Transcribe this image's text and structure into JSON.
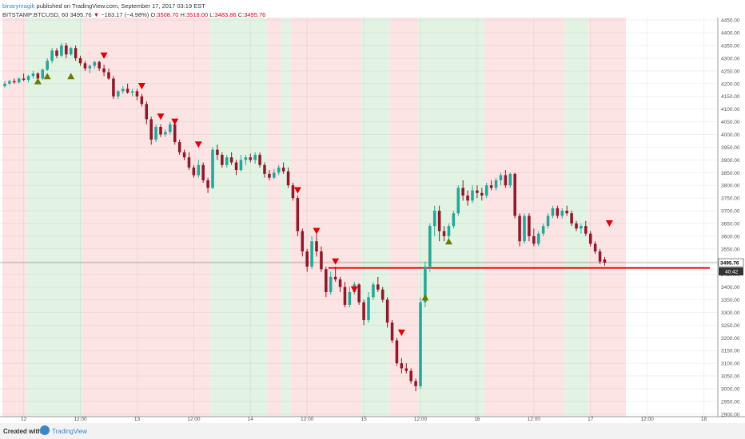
{
  "header": {
    "author": "binarymagik",
    "published": "published on TradingView.com, September 17, 2017 03:19 EST",
    "symbol_line": "BITSTAMP:BTCUSD, 60",
    "last": "3495.76",
    "change": "−183.17 (−4.98%)",
    "o_label": "O:",
    "o": "3508.70",
    "h_label": "H:",
    "h": "3518.00",
    "l_label": "L:",
    "l": "3483.86",
    "c_label": "C:",
    "c": "3495.76"
  },
  "footer": {
    "created": "Created with",
    "brand": "TradingView"
  },
  "colors": {
    "up": "#26a69a",
    "down": "#8b1a2b",
    "green_zone": "#e3f3e3",
    "red_zone": "#fde4e4",
    "level_line": "#e00000",
    "marker_up": "#6b7a00",
    "marker_down": "#e00000"
  },
  "chart_data": {
    "type": "candlestick",
    "ylim": [
      2890,
      4460
    ],
    "yticks": [
      "4450.00",
      "4400.00",
      "4350.00",
      "4300.00",
      "4250.00",
      "4200.00",
      "4150.00",
      "4100.00",
      "4050.00",
      "4000.00",
      "3950.00",
      "3900.00",
      "3850.00",
      "3800.00",
      "3750.00",
      "3700.00",
      "3650.00",
      "3600.00",
      "3550.00",
      "3500.00",
      "3450.00",
      "3400.00",
      "3350.00",
      "3300.00",
      "3250.00",
      "3200.00",
      "3150.00",
      "3100.00",
      "3050.00",
      "3000.00",
      "2950.00",
      "2900.00"
    ],
    "xlim": [
      0,
      132
    ],
    "xticks": [
      {
        "t": 4,
        "label": "12"
      },
      {
        "t": 16,
        "label": "12:00"
      },
      {
        "t": 28,
        "label": "13"
      },
      {
        "t": 40,
        "label": "12:00"
      },
      {
        "t": 52,
        "label": "14"
      },
      {
        "t": 64,
        "label": "12:00"
      },
      {
        "t": 76,
        "label": "15"
      },
      {
        "t": 88,
        "label": "12:00"
      },
      {
        "t": 100,
        "label": "16"
      },
      {
        "t": 112,
        "label": "12:00"
      },
      {
        "t": 124,
        "label": "17"
      },
      {
        "t": 136,
        "label": "12:00"
      },
      {
        "t": 148,
        "label": "18"
      }
    ],
    "price_label": "3495.76",
    "countdown_label": "40:42",
    "horizontal_level": 3475,
    "zones": [
      {
        "from": 0,
        "to": 5,
        "color": "red"
      },
      {
        "from": 5,
        "to": 17,
        "color": "green"
      },
      {
        "from": 17,
        "to": 44,
        "color": "red"
      },
      {
        "from": 44,
        "to": 56,
        "color": "green"
      },
      {
        "from": 56,
        "to": 59,
        "color": "red"
      },
      {
        "from": 59,
        "to": 61,
        "color": "green"
      },
      {
        "from": 61,
        "to": 76,
        "color": "red"
      },
      {
        "from": 76,
        "to": 82,
        "color": "green"
      },
      {
        "from": 82,
        "to": 88,
        "color": "red"
      },
      {
        "from": 88,
        "to": 102,
        "color": "green"
      },
      {
        "from": 102,
        "to": 119,
        "color": "red"
      },
      {
        "from": 119,
        "to": 124,
        "color": "green"
      },
      {
        "from": 124,
        "to": 132,
        "color": "red"
      }
    ],
    "candles": [
      [
        4190,
        4210,
        4185,
        4200
      ],
      [
        4200,
        4215,
        4195,
        4210
      ],
      [
        4210,
        4220,
        4200,
        4205
      ],
      [
        4205,
        4225,
        4200,
        4220
      ],
      [
        4220,
        4240,
        4210,
        4215
      ],
      [
        4215,
        4235,
        4205,
        4230
      ],
      [
        4230,
        4250,
        4220,
        4240
      ],
      [
        4240,
        4245,
        4210,
        4220
      ],
      [
        4220,
        4260,
        4215,
        4255
      ],
      [
        4255,
        4300,
        4250,
        4290
      ],
      [
        4290,
        4340,
        4280,
        4330
      ],
      [
        4330,
        4340,
        4300,
        4310
      ],
      [
        4310,
        4360,
        4305,
        4350
      ],
      [
        4350,
        4360,
        4300,
        4315
      ],
      [
        4315,
        4345,
        4310,
        4340
      ],
      [
        4340,
        4350,
        4290,
        4300
      ],
      [
        4300,
        4310,
        4270,
        4280
      ],
      [
        4280,
        4290,
        4250,
        4260
      ],
      [
        4260,
        4275,
        4240,
        4270
      ],
      [
        4270,
        4290,
        4260,
        4285
      ],
      [
        4285,
        4290,
        4250,
        4260
      ],
      [
        4260,
        4275,
        4230,
        4245
      ],
      [
        4245,
        4260,
        4215,
        4220
      ],
      [
        4220,
        4230,
        4140,
        4150
      ],
      [
        4150,
        4175,
        4140,
        4170
      ],
      [
        4170,
        4190,
        4160,
        4180
      ],
      [
        4180,
        4200,
        4160,
        4165
      ],
      [
        4165,
        4180,
        4150,
        4170
      ],
      [
        4170,
        4180,
        4135,
        4150
      ],
      [
        4150,
        4160,
        4110,
        4120
      ],
      [
        4120,
        4130,
        4040,
        4060
      ],
      [
        4060,
        4070,
        3960,
        3980
      ],
      [
        3980,
        4040,
        3970,
        4030
      ],
      [
        4030,
        4040,
        3990,
        4000
      ],
      [
        4000,
        4020,
        3990,
        4010
      ],
      [
        4010,
        4050,
        4000,
        4040
      ],
      [
        4040,
        4045,
        3960,
        3970
      ],
      [
        3970,
        3980,
        3920,
        3930
      ],
      [
        3930,
        3940,
        3900,
        3910
      ],
      [
        3910,
        3930,
        3860,
        3870
      ],
      [
        3870,
        3880,
        3830,
        3840
      ],
      [
        3840,
        3900,
        3830,
        3880
      ],
      [
        3880,
        3890,
        3810,
        3820
      ],
      [
        3820,
        3830,
        3770,
        3790
      ],
      [
        3790,
        3950,
        3785,
        3940
      ],
      [
        3940,
        3960,
        3900,
        3920
      ],
      [
        3920,
        3930,
        3870,
        3880
      ],
      [
        3880,
        3920,
        3870,
        3910
      ],
      [
        3910,
        3930,
        3880,
        3890
      ],
      [
        3890,
        3900,
        3840,
        3860
      ],
      [
        3860,
        3920,
        3855,
        3900
      ],
      [
        3900,
        3920,
        3880,
        3910
      ],
      [
        3910,
        3925,
        3890,
        3900
      ],
      [
        3900,
        3930,
        3885,
        3920
      ],
      [
        3920,
        3930,
        3870,
        3880
      ],
      [
        3880,
        3890,
        3830,
        3845
      ],
      [
        3845,
        3860,
        3820,
        3830
      ],
      [
        3830,
        3865,
        3825,
        3850
      ],
      [
        3850,
        3880,
        3840,
        3870
      ],
      [
        3870,
        3890,
        3845,
        3855
      ],
      [
        3855,
        3870,
        3790,
        3800
      ],
      [
        3800,
        3810,
        3740,
        3750
      ],
      [
        3750,
        3760,
        3600,
        3620
      ],
      [
        3620,
        3630,
        3520,
        3540
      ],
      [
        3540,
        3550,
        3460,
        3480
      ],
      [
        3480,
        3600,
        3470,
        3580
      ],
      [
        3580,
        3620,
        3520,
        3540
      ],
      [
        3540,
        3560,
        3460,
        3470
      ],
      [
        3470,
        3480,
        3360,
        3380
      ],
      [
        3380,
        3460,
        3370,
        3440
      ],
      [
        3440,
        3480,
        3420,
        3430
      ],
      [
        3430,
        3440,
        3380,
        3400
      ],
      [
        3400,
        3420,
        3320,
        3330
      ],
      [
        3330,
        3400,
        3320,
        3380
      ],
      [
        3380,
        3420,
        3370,
        3410
      ],
      [
        3410,
        3415,
        3330,
        3340
      ],
      [
        3340,
        3350,
        3250,
        3270
      ],
      [
        3270,
        3380,
        3260,
        3360
      ],
      [
        3360,
        3420,
        3350,
        3410
      ],
      [
        3410,
        3440,
        3380,
        3390
      ],
      [
        3390,
        3400,
        3340,
        3350
      ],
      [
        3350,
        3360,
        3240,
        3260
      ],
      [
        3260,
        3270,
        3180,
        3190
      ],
      [
        3190,
        3200,
        3090,
        3100
      ],
      [
        3100,
        3120,
        3060,
        3080
      ],
      [
        3080,
        3100,
        3060,
        3070
      ],
      [
        3070,
        3080,
        3020,
        3030
      ],
      [
        3030,
        3040,
        2990,
        3010
      ],
      [
        3010,
        3360,
        3000,
        3340
      ],
      [
        3340,
        3500,
        3320,
        3480
      ],
      [
        3480,
        3650,
        3460,
        3640
      ],
      [
        3640,
        3720,
        3600,
        3700
      ],
      [
        3700,
        3720,
        3580,
        3620
      ],
      [
        3620,
        3640,
        3580,
        3600
      ],
      [
        3600,
        3650,
        3590,
        3640
      ],
      [
        3640,
        3700,
        3630,
        3690
      ],
      [
        3690,
        3800,
        3680,
        3790
      ],
      [
        3790,
        3820,
        3740,
        3760
      ],
      [
        3760,
        3780,
        3720,
        3740
      ],
      [
        3740,
        3800,
        3730,
        3780
      ],
      [
        3780,
        3800,
        3750,
        3770
      ],
      [
        3770,
        3790,
        3740,
        3760
      ],
      [
        3760,
        3810,
        3750,
        3800
      ],
      [
        3800,
        3820,
        3780,
        3790
      ],
      [
        3790,
        3830,
        3780,
        3820
      ],
      [
        3820,
        3850,
        3800,
        3840
      ],
      [
        3840,
        3860,
        3790,
        3800
      ],
      [
        3800,
        3850,
        3790,
        3845
      ],
      [
        3845,
        3850,
        3670,
        3680
      ],
      [
        3680,
        3690,
        3560,
        3580
      ],
      [
        3580,
        3690,
        3570,
        3680
      ],
      [
        3680,
        3690,
        3580,
        3600
      ],
      [
        3600,
        3630,
        3560,
        3570
      ],
      [
        3570,
        3620,
        3560,
        3610
      ],
      [
        3610,
        3650,
        3600,
        3640
      ],
      [
        3640,
        3690,
        3630,
        3680
      ],
      [
        3680,
        3720,
        3670,
        3710
      ],
      [
        3710,
        3720,
        3670,
        3680
      ],
      [
        3680,
        3710,
        3670,
        3700
      ],
      [
        3700,
        3720,
        3680,
        3690
      ],
      [
        3690,
        3700,
        3640,
        3650
      ],
      [
        3650,
        3660,
        3620,
        3630
      ],
      [
        3630,
        3650,
        3610,
        3640
      ],
      [
        3640,
        3660,
        3600,
        3610
      ],
      [
        3610,
        3620,
        3560,
        3570
      ],
      [
        3570,
        3580,
        3530,
        3540
      ],
      [
        3540,
        3550,
        3490,
        3500
      ],
      [
        3508.7,
        3518,
        3483.86,
        3495.76
      ]
    ],
    "markers": [
      {
        "t": 7,
        "type": "up",
        "price": 4210
      },
      {
        "t": 9,
        "type": "up",
        "price": 4230
      },
      {
        "t": 14,
        "type": "up",
        "price": 4230
      },
      {
        "t": 21,
        "type": "down",
        "price": 4310
      },
      {
        "t": 29,
        "type": "down",
        "price": 4190
      },
      {
        "t": 33,
        "type": "down",
        "price": 4070
      },
      {
        "t": 36,
        "type": "down",
        "price": 4050
      },
      {
        "t": 41,
        "type": "down",
        "price": 3960
      },
      {
        "t": 62,
        "type": "down",
        "price": 3780
      },
      {
        "t": 66,
        "type": "down",
        "price": 3620
      },
      {
        "t": 70,
        "type": "down",
        "price": 3500
      },
      {
        "t": 74,
        "type": "down",
        "price": 3390
      },
      {
        "t": 84,
        "type": "down",
        "price": 3220
      },
      {
        "t": 89,
        "type": "up",
        "price": 3360
      },
      {
        "t": 94,
        "type": "up",
        "price": 3580
      },
      {
        "t": 128,
        "type": "down",
        "price": 3650
      }
    ]
  }
}
